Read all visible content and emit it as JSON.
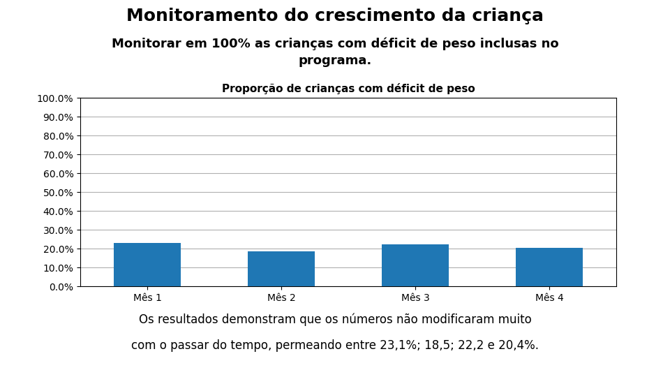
{
  "chart_data": {
    "type": "bar",
    "title": "Monitoramento do crescimento da criança",
    "subtitle": [
      "Monitorar em 100% as crianças com déficit de peso inclusas no",
      "programa."
    ],
    "chart_title": "Proporção de crianças com déficit de peso",
    "categories": [
      "Mês 1",
      "Mês 2",
      "Mês 3",
      "Mês 4"
    ],
    "values": [
      23.1,
      18.5,
      22.2,
      20.4
    ],
    "ylim": [
      0,
      100
    ],
    "yticks": [
      {
        "value": 0.0,
        "label": "0.0%"
      },
      {
        "value": 10.0,
        "label": "10.0%"
      },
      {
        "value": 20.0,
        "label": "20.0%"
      },
      {
        "value": 30.0,
        "label": "30.0%"
      },
      {
        "value": 40.0,
        "label": "40.0%"
      },
      {
        "value": 50.0,
        "label": "50.0%"
      },
      {
        "value": 60.0,
        "label": "60.0%"
      },
      {
        "value": 70.0,
        "label": "70.0%"
      },
      {
        "value": 80.0,
        "label": "80.0%"
      },
      {
        "value": 90.0,
        "label": "90.0%"
      },
      {
        "value": 100.0,
        "label": "100.0%"
      }
    ],
    "grid": true,
    "footer": [
      "Os resultados demonstram que os números não modificaram muito",
      "com o passar do tempo, permeando entre 23,1%; 18,5; 22,2 e 20,4%."
    ]
  }
}
